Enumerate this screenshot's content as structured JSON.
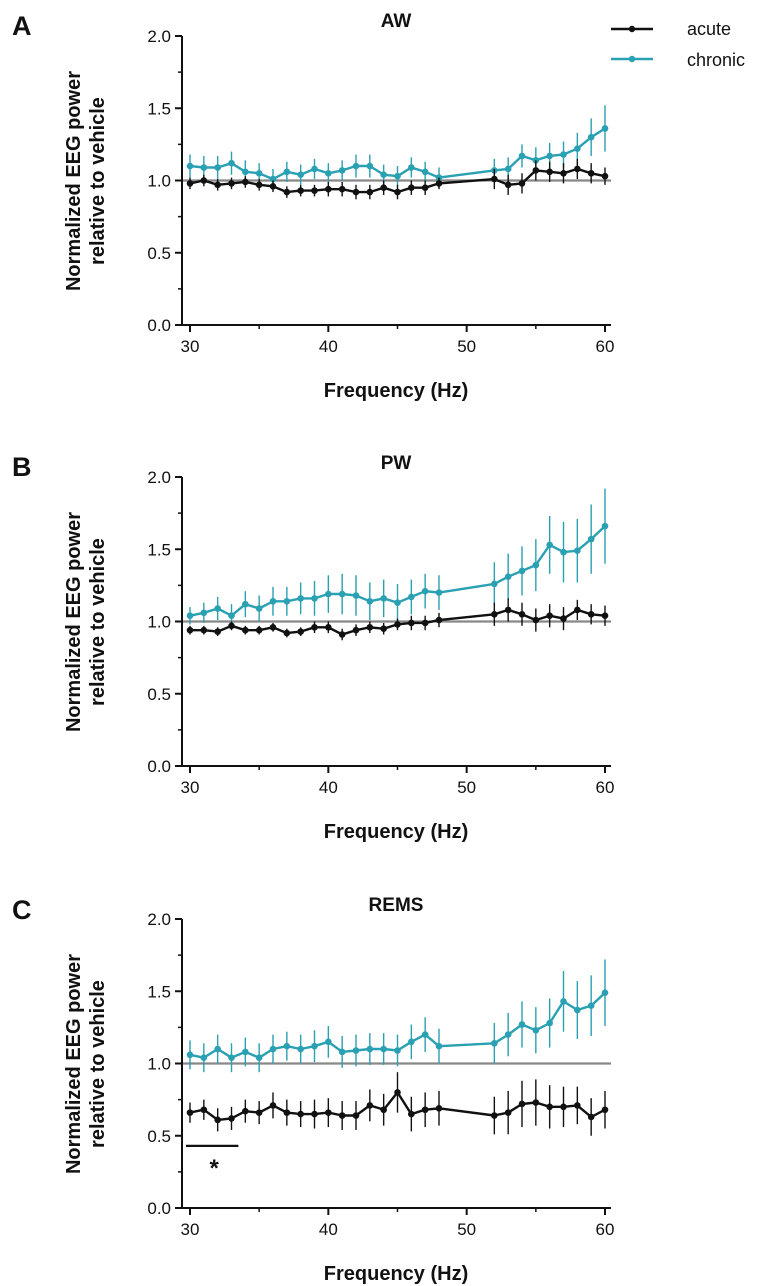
{
  "legend": [
    {
      "label": "acute",
      "color": "#111111"
    },
    {
      "label": "chronic",
      "color": "#2aa0b3"
    }
  ],
  "reference_line": {
    "y": 1.0,
    "color": "#888888"
  },
  "chart_data": [
    {
      "type": "line",
      "panel_letter": "A",
      "title": "AW",
      "xlabel": "Frequency (Hz)",
      "ylabel": [
        "Normalized EEG power",
        "relative to vehicle"
      ],
      "xlim": [
        29.5,
        60.5
      ],
      "ylim": [
        0,
        2.0
      ],
      "xticks": [
        30,
        40,
        50,
        60
      ],
      "yticks": [
        "0.0",
        "0.5",
        "1.0",
        "1.5",
        "2.0"
      ],
      "grid": false,
      "x": [
        30,
        31,
        32,
        33,
        34,
        35,
        36,
        37,
        38,
        39,
        40,
        41,
        42,
        43,
        44,
        45,
        46,
        47,
        48,
        52,
        53,
        54,
        55,
        56,
        57,
        58,
        59,
        60
      ],
      "series": [
        {
          "name": "acute",
          "color": "#111111",
          "values": [
            0.98,
            1.0,
            0.97,
            0.98,
            0.99,
            0.97,
            0.96,
            0.92,
            0.93,
            0.93,
            0.94,
            0.94,
            0.92,
            0.92,
            0.95,
            0.92,
            0.95,
            0.95,
            0.98,
            1.01,
            0.97,
            0.98,
            1.07,
            1.06,
            1.05,
            1.08,
            1.05,
            1.03
          ],
          "errors": [
            0.04,
            0.04,
            0.04,
            0.04,
            0.04,
            0.04,
            0.04,
            0.04,
            0.04,
            0.04,
            0.05,
            0.05,
            0.05,
            0.05,
            0.05,
            0.05,
            0.05,
            0.05,
            0.04,
            0.07,
            0.07,
            0.07,
            0.07,
            0.07,
            0.07,
            0.07,
            0.07,
            0.06
          ]
        },
        {
          "name": "chronic",
          "color": "#2aa0b3",
          "values": [
            1.1,
            1.09,
            1.09,
            1.12,
            1.06,
            1.05,
            1.01,
            1.06,
            1.04,
            1.08,
            1.05,
            1.07,
            1.1,
            1.1,
            1.04,
            1.03,
            1.09,
            1.06,
            1.02,
            1.07,
            1.08,
            1.17,
            1.14,
            1.17,
            1.18,
            1.22,
            1.3,
            1.36
          ],
          "errors": [
            0.08,
            0.08,
            0.08,
            0.08,
            0.08,
            0.07,
            0.07,
            0.07,
            0.07,
            0.07,
            0.07,
            0.07,
            0.08,
            0.08,
            0.07,
            0.07,
            0.07,
            0.07,
            0.07,
            0.08,
            0.08,
            0.08,
            0.09,
            0.09,
            0.09,
            0.11,
            0.13,
            0.16
          ]
        }
      ]
    },
    {
      "type": "line",
      "panel_letter": "B",
      "title": "PW",
      "xlabel": "Frequency (Hz)",
      "ylabel": [
        "Normalized EEG power",
        "relative to vehicle"
      ],
      "xlim": [
        29.5,
        60.5
      ],
      "ylim": [
        0,
        2.0
      ],
      "xticks": [
        30,
        40,
        50,
        60
      ],
      "yticks": [
        "0.0",
        "0.5",
        "1.0",
        "1.5",
        "2.0"
      ],
      "grid": false,
      "x": [
        30,
        31,
        32,
        33,
        34,
        35,
        36,
        37,
        38,
        39,
        40,
        41,
        42,
        43,
        44,
        45,
        46,
        47,
        48,
        52,
        53,
        54,
        55,
        56,
        57,
        58,
        59,
        60
      ],
      "series": [
        {
          "name": "acute",
          "color": "#111111",
          "values": [
            0.94,
            0.94,
            0.93,
            0.97,
            0.94,
            0.94,
            0.96,
            0.92,
            0.93,
            0.96,
            0.96,
            0.91,
            0.94,
            0.96,
            0.95,
            0.98,
            0.99,
            0.99,
            1.01,
            1.05,
            1.08,
            1.05,
            1.01,
            1.04,
            1.02,
            1.08,
            1.05,
            1.04
          ],
          "errors": [
            0.03,
            0.03,
            0.03,
            0.03,
            0.03,
            0.03,
            0.03,
            0.03,
            0.03,
            0.04,
            0.04,
            0.04,
            0.04,
            0.04,
            0.04,
            0.04,
            0.05,
            0.05,
            0.05,
            0.08,
            0.08,
            0.08,
            0.08,
            0.08,
            0.08,
            0.07,
            0.07,
            0.07
          ]
        },
        {
          "name": "chronic",
          "color": "#2aa0b3",
          "values": [
            1.04,
            1.06,
            1.09,
            1.04,
            1.12,
            1.09,
            1.14,
            1.14,
            1.16,
            1.16,
            1.19,
            1.19,
            1.18,
            1.14,
            1.16,
            1.13,
            1.17,
            1.21,
            1.2,
            1.26,
            1.31,
            1.35,
            1.39,
            1.53,
            1.48,
            1.49,
            1.57,
            1.66
          ],
          "errors": [
            0.06,
            0.07,
            0.08,
            0.08,
            0.09,
            0.09,
            0.1,
            0.1,
            0.11,
            0.12,
            0.13,
            0.14,
            0.14,
            0.13,
            0.13,
            0.13,
            0.12,
            0.12,
            0.12,
            0.15,
            0.16,
            0.17,
            0.18,
            0.2,
            0.21,
            0.22,
            0.24,
            0.26
          ]
        }
      ]
    },
    {
      "type": "line",
      "panel_letter": "C",
      "title": "REMS",
      "xlabel": "Frequency (Hz)",
      "ylabel": [
        "Normalized EEG power",
        "relative to vehicle"
      ],
      "xlim": [
        29.5,
        60.5
      ],
      "ylim": [
        0,
        2.0
      ],
      "xticks": [
        30,
        40,
        50,
        60
      ],
      "yticks": [
        "0.0",
        "0.5",
        "1.0",
        "1.5",
        "2.0"
      ],
      "grid": false,
      "x": [
        30,
        31,
        32,
        33,
        34,
        35,
        36,
        37,
        38,
        39,
        40,
        41,
        42,
        43,
        44,
        45,
        46,
        47,
        48,
        52,
        53,
        54,
        55,
        56,
        57,
        58,
        59,
        60
      ],
      "series": [
        {
          "name": "acute",
          "color": "#111111",
          "values": [
            0.66,
            0.68,
            0.61,
            0.62,
            0.67,
            0.66,
            0.71,
            0.66,
            0.65,
            0.65,
            0.66,
            0.64,
            0.64,
            0.71,
            0.68,
            0.8,
            0.65,
            0.68,
            0.69,
            0.64,
            0.66,
            0.72,
            0.73,
            0.7,
            0.7,
            0.71,
            0.63,
            0.68
          ],
          "errors": [
            0.07,
            0.07,
            0.08,
            0.08,
            0.08,
            0.08,
            0.09,
            0.09,
            0.09,
            0.1,
            0.1,
            0.1,
            0.1,
            0.11,
            0.11,
            0.14,
            0.12,
            0.12,
            0.12,
            0.13,
            0.15,
            0.16,
            0.16,
            0.15,
            0.14,
            0.13,
            0.13,
            0.13
          ]
        },
        {
          "name": "chronic",
          "color": "#2aa0b3",
          "values": [
            1.06,
            1.04,
            1.1,
            1.04,
            1.08,
            1.04,
            1.1,
            1.12,
            1.1,
            1.12,
            1.15,
            1.08,
            1.09,
            1.1,
            1.1,
            1.09,
            1.15,
            1.2,
            1.12,
            1.14,
            1.2,
            1.27,
            1.23,
            1.28,
            1.43,
            1.37,
            1.4,
            1.49
          ],
          "errors": [
            0.1,
            0.1,
            0.1,
            0.1,
            0.1,
            0.1,
            0.1,
            0.1,
            0.1,
            0.11,
            0.11,
            0.11,
            0.11,
            0.11,
            0.11,
            0.11,
            0.12,
            0.12,
            0.12,
            0.14,
            0.15,
            0.16,
            0.16,
            0.17,
            0.21,
            0.2,
            0.21,
            0.23
          ]
        }
      ],
      "annotations": [
        {
          "text": "*",
          "x_from": 30,
          "x_to": 33.5,
          "y": 0.43
        }
      ]
    }
  ]
}
